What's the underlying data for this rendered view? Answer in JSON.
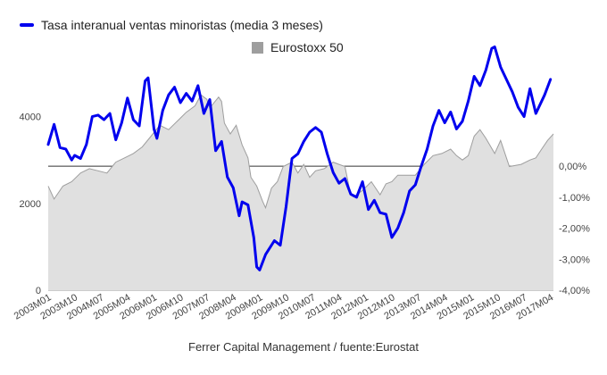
{
  "legend": [
    {
      "label": "Tasa interanual ventas minoristas (media 3 meses)",
      "color": "#0000ee"
    },
    {
      "label": "Eurostoxx 50",
      "color": "#9e9e9e"
    }
  ],
  "footer": "Ferrer Capital Management / fuente:Eurostat",
  "chart_data": {
    "type": "line",
    "title": "",
    "x_ticks": [
      "2003M01",
      "2003M10",
      "2004M07",
      "2005M04",
      "2006M01",
      "2006M10",
      "2007M07",
      "2008M04",
      "2009M01",
      "2009M10",
      "2010M07",
      "2011M04",
      "2012M01",
      "2012M10",
      "2013M07",
      "2014M04",
      "2015M01",
      "2015M10",
      "2016M07",
      "2017M04"
    ],
    "x_range": [
      "2003M01",
      "2017M05"
    ],
    "left_axis": {
      "ticks": [
        0,
        2000,
        4000
      ],
      "range": [
        0,
        5000
      ]
    },
    "right_axis": {
      "ticks": [
        "0,00%",
        "-1,00%",
        "-2,00%",
        "-3,00%",
        "-4,00%"
      ],
      "range": [
        -4.0,
        3.0
      ]
    },
    "series": [
      {
        "name": "Eurostoxx 50",
        "type": "area",
        "axis": "left",
        "color": "#9e9e9e",
        "fill": "#e0e0e0",
        "points": [
          [
            "2003M01",
            2400
          ],
          [
            "2003M03",
            2100
          ],
          [
            "2003M06",
            2400
          ],
          [
            "2003M09",
            2500
          ],
          [
            "2003M12",
            2700
          ],
          [
            "2004M03",
            2800
          ],
          [
            "2004M06",
            2750
          ],
          [
            "2004M09",
            2700
          ],
          [
            "2004M12",
            2950
          ],
          [
            "2005M03",
            3050
          ],
          [
            "2005M06",
            3150
          ],
          [
            "2005M09",
            3300
          ],
          [
            "2005M12",
            3550
          ],
          [
            "2006M03",
            3800
          ],
          [
            "2006M06",
            3700
          ],
          [
            "2006M09",
            3900
          ],
          [
            "2006M12",
            4100
          ],
          [
            "2007M03",
            4250
          ],
          [
            "2007M05",
            4500
          ],
          [
            "2007M07",
            4400
          ],
          [
            "2007M08",
            4200
          ],
          [
            "2007M11",
            4450
          ],
          [
            "2007M12",
            4350
          ],
          [
            "2008M01",
            3850
          ],
          [
            "2008M03",
            3600
          ],
          [
            "2008M05",
            3800
          ],
          [
            "2008M07",
            3350
          ],
          [
            "2008M09",
            3050
          ],
          [
            "2008M10",
            2600
          ],
          [
            "2008M12",
            2400
          ],
          [
            "2009M02",
            2050
          ],
          [
            "2009M03",
            1900
          ],
          [
            "2009M05",
            2350
          ],
          [
            "2009M07",
            2500
          ],
          [
            "2009M09",
            2850
          ],
          [
            "2009M12",
            2950
          ],
          [
            "2010M02",
            2700
          ],
          [
            "2010M04",
            2900
          ],
          [
            "2010M06",
            2600
          ],
          [
            "2010M08",
            2750
          ],
          [
            "2010M11",
            2800
          ],
          [
            "2011M02",
            2950
          ],
          [
            "2011M04",
            2900
          ],
          [
            "2011M06",
            2850
          ],
          [
            "2011M08",
            2200
          ],
          [
            "2011M09",
            2150
          ],
          [
            "2011M12",
            2300
          ],
          [
            "2012M03",
            2500
          ],
          [
            "2012M06",
            2200
          ],
          [
            "2012M08",
            2450
          ],
          [
            "2012M10",
            2500
          ],
          [
            "2012M12",
            2650
          ],
          [
            "2013M03",
            2650
          ],
          [
            "2013M06",
            2650
          ],
          [
            "2013M09",
            2900
          ],
          [
            "2013M12",
            3100
          ],
          [
            "2014M03",
            3150
          ],
          [
            "2014M06",
            3250
          ],
          [
            "2014M08",
            3100
          ],
          [
            "2014M10",
            3000
          ],
          [
            "2014M12",
            3100
          ],
          [
            "2015M02",
            3550
          ],
          [
            "2015M04",
            3700
          ],
          [
            "2015M06",
            3500
          ],
          [
            "2015M09",
            3150
          ],
          [
            "2015M11",
            3450
          ],
          [
            "2016M02",
            2850
          ],
          [
            "2016M06",
            2900
          ],
          [
            "2016M09",
            3000
          ],
          [
            "2016M11",
            3050
          ],
          [
            "2017M01",
            3250
          ],
          [
            "2017M03",
            3450
          ],
          [
            "2017M05",
            3600
          ]
        ]
      },
      {
        "name": "Tasa interanual ventas minoristas (media 3 meses)",
        "type": "line",
        "axis": "right",
        "color": "#0000ee",
        "points": [
          [
            "2003M01",
            0.7
          ],
          [
            "2003M03",
            1.35
          ],
          [
            "2003M05",
            0.6
          ],
          [
            "2003M07",
            0.55
          ],
          [
            "2003M09",
            0.2
          ],
          [
            "2003M10",
            0.35
          ],
          [
            "2003M12",
            0.25
          ],
          [
            "2004M02",
            0.7
          ],
          [
            "2004M04",
            1.6
          ],
          [
            "2004M06",
            1.65
          ],
          [
            "2004M08",
            1.5
          ],
          [
            "2004M10",
            1.7
          ],
          [
            "2004M12",
            0.85
          ],
          [
            "2005M02",
            1.4
          ],
          [
            "2005M04",
            2.2
          ],
          [
            "2005M06",
            1.5
          ],
          [
            "2005M08",
            1.3
          ],
          [
            "2005M10",
            2.75
          ],
          [
            "2005M11",
            2.85
          ],
          [
            "2006M01",
            1.2
          ],
          [
            "2006M02",
            0.9
          ],
          [
            "2006M04",
            1.8
          ],
          [
            "2006M06",
            2.3
          ],
          [
            "2006M08",
            2.55
          ],
          [
            "2006M10",
            2.05
          ],
          [
            "2006M12",
            2.35
          ],
          [
            "2007M02",
            2.1
          ],
          [
            "2007M04",
            2.6
          ],
          [
            "2007M06",
            1.7
          ],
          [
            "2007M08",
            2.15
          ],
          [
            "2007M10",
            0.5
          ],
          [
            "2007M12",
            0.8
          ],
          [
            "2008M02",
            -0.35
          ],
          [
            "2008M04",
            -0.7
          ],
          [
            "2008M06",
            -1.6
          ],
          [
            "2008M07",
            -1.15
          ],
          [
            "2008M09",
            -1.25
          ],
          [
            "2008M11",
            -2.3
          ],
          [
            "2008M12",
            -3.25
          ],
          [
            "2009M01",
            -3.35
          ],
          [
            "2009M03",
            -2.85
          ],
          [
            "2009M06",
            -2.4
          ],
          [
            "2009M08",
            -2.55
          ],
          [
            "2009M10",
            -1.3
          ],
          [
            "2009M12",
            0.25
          ],
          [
            "2010M02",
            0.4
          ],
          [
            "2010M04",
            0.8
          ],
          [
            "2010M06",
            1.1
          ],
          [
            "2010M08",
            1.25
          ],
          [
            "2010M10",
            1.1
          ],
          [
            "2010M12",
            0.4
          ],
          [
            "2011M02",
            -0.2
          ],
          [
            "2011M04",
            -0.55
          ],
          [
            "2011M06",
            -0.4
          ],
          [
            "2011M08",
            -0.9
          ],
          [
            "2011M10",
            -1.0
          ],
          [
            "2011M12",
            -0.5
          ],
          [
            "2012M02",
            -1.4
          ],
          [
            "2012M04",
            -1.1
          ],
          [
            "2012M06",
            -1.5
          ],
          [
            "2012M08",
            -1.55
          ],
          [
            "2012M10",
            -2.3
          ],
          [
            "2012M12",
            -2.0
          ],
          [
            "2013M02",
            -1.5
          ],
          [
            "2013M04",
            -0.8
          ],
          [
            "2013M06",
            -0.6
          ],
          [
            "2013M08",
            0.0
          ],
          [
            "2013M10",
            0.55
          ],
          [
            "2013M12",
            1.3
          ],
          [
            "2014M02",
            1.8
          ],
          [
            "2014M04",
            1.4
          ],
          [
            "2014M06",
            1.75
          ],
          [
            "2014M08",
            1.2
          ],
          [
            "2014M10",
            1.45
          ],
          [
            "2014M12",
            2.1
          ],
          [
            "2015M02",
            2.9
          ],
          [
            "2015M04",
            2.6
          ],
          [
            "2015M06",
            3.1
          ],
          [
            "2015M08",
            3.8
          ],
          [
            "2015M09",
            3.85
          ],
          [
            "2015M11",
            3.2
          ],
          [
            "2016M01",
            2.8
          ],
          [
            "2016M03",
            2.4
          ],
          [
            "2016M05",
            1.9
          ],
          [
            "2016M07",
            1.6
          ],
          [
            "2016M09",
            2.5
          ],
          [
            "2016M11",
            1.7
          ],
          [
            "2017M02",
            2.3
          ],
          [
            "2017M04",
            2.8
          ]
        ]
      }
    ],
    "zero_line_axis": "right"
  }
}
